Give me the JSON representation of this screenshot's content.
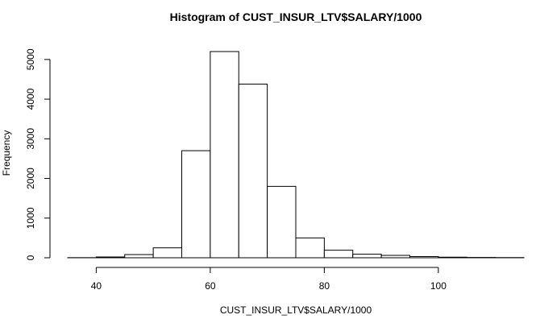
{
  "chart_data": {
    "type": "bar",
    "title": "Histogram of CUST_INSUR_LTV$SALARY/1000",
    "xlabel": "CUST_INSUR_LTV$SALARY/1000",
    "ylabel": "Frequency",
    "bin_edges": [
      35,
      40,
      45,
      50,
      55,
      60,
      65,
      70,
      75,
      80,
      85,
      90,
      95,
      100,
      105,
      110,
      115
    ],
    "values": [
      3,
      20,
      80,
      250,
      2700,
      5200,
      4380,
      1800,
      500,
      190,
      90,
      60,
      30,
      15,
      8,
      5
    ],
    "xlim": [
      35,
      115
    ],
    "ylim": [
      0,
      5200
    ],
    "x_ticks": [
      40,
      60,
      80,
      100
    ],
    "y_ticks": [
      0,
      1000,
      2000,
      3000,
      4000,
      5000
    ],
    "grid": false,
    "colors": {
      "bar_fill": "#ffffff",
      "bar_stroke": "#000000"
    }
  }
}
